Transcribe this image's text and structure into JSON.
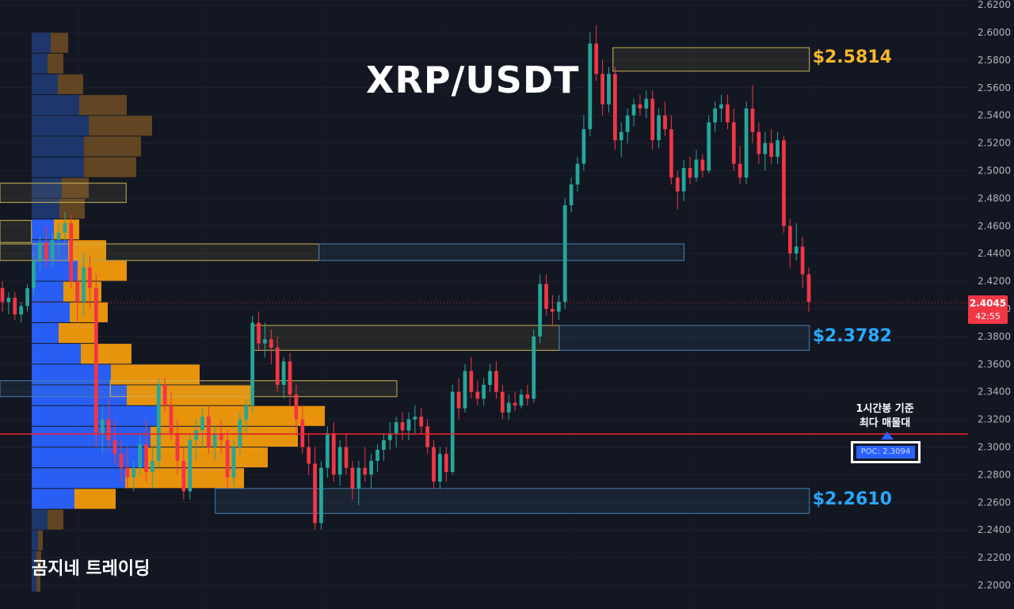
{
  "chart_title": "XRP/USDT",
  "watermark": "곰지네 트레이딩",
  "current_price": {
    "price": "2.4045",
    "countdown": "42:55"
  },
  "poc": {
    "note_line1": "1시간봉 기준",
    "note_line2": "최다 매물대",
    "label": "POC: 2.3094",
    "value": 2.3094
  },
  "colors": {
    "background": "#131722",
    "up": "#26a69a",
    "down": "#f23645",
    "supply_zone": "#c9b458",
    "demand_zone": "#4a7fb0",
    "label_gold": "#f5b72b",
    "label_blue": "#29a8ff",
    "poc_line": "#e5222e",
    "vp_up": "#2962ff",
    "vp_down": "#f29a0c"
  },
  "chart_data": {
    "type": "candlestick",
    "title": "XRP/USDT",
    "ylim": [
      2.19,
      2.62
    ],
    "y_ticks": [
      "2.2000",
      "2.2200",
      "2.2400",
      "2.2600",
      "2.2800",
      "2.3000",
      "2.3200",
      "2.3400",
      "2.3600",
      "2.3800",
      "2.4000",
      "2.4200",
      "2.4400",
      "2.4600",
      "2.4800",
      "2.5000",
      "2.5200",
      "2.5400",
      "2.5600",
      "2.5800",
      "2.6000",
      "2.6200"
    ],
    "grid": true,
    "candles": [
      [
        2.415,
        2.42,
        2.398,
        2.405
      ],
      [
        2.405,
        2.412,
        2.396,
        2.408
      ],
      [
        2.408,
        2.412,
        2.392,
        2.396
      ],
      [
        2.396,
        2.405,
        2.39,
        2.402
      ],
      [
        2.402,
        2.418,
        2.398,
        2.415
      ],
      [
        2.415,
        2.44,
        2.41,
        2.435
      ],
      [
        2.435,
        2.452,
        2.428,
        2.448
      ],
      [
        2.448,
        2.46,
        2.43,
        2.436
      ],
      [
        2.436,
        2.455,
        2.43,
        2.45
      ],
      [
        2.45,
        2.462,
        2.44,
        2.455
      ],
      [
        2.455,
        2.47,
        2.448,
        2.462
      ],
      [
        2.462,
        2.468,
        2.415,
        2.42
      ],
      [
        2.42,
        2.43,
        2.39,
        2.405
      ],
      [
        2.405,
        2.44,
        2.395,
        2.43
      ],
      [
        2.43,
        2.438,
        2.4,
        2.415
      ],
      [
        2.415,
        2.425,
        2.3,
        2.31
      ],
      [
        2.31,
        2.33,
        2.295,
        2.32
      ],
      [
        2.32,
        2.335,
        2.298,
        2.305
      ],
      [
        2.305,
        2.32,
        2.288,
        2.295
      ],
      [
        2.295,
        2.305,
        2.275,
        2.285
      ],
      [
        2.285,
        2.3,
        2.27,
        2.278
      ],
      [
        2.278,
        2.29,
        2.268,
        2.285
      ],
      [
        2.285,
        2.31,
        2.28,
        2.302
      ],
      [
        2.302,
        2.32,
        2.275,
        2.282
      ],
      [
        2.282,
        2.3,
        2.27,
        2.29
      ],
      [
        2.29,
        2.35,
        2.285,
        2.345
      ],
      [
        2.345,
        2.35,
        2.325,
        2.33
      ],
      [
        2.33,
        2.34,
        2.305,
        2.31
      ],
      [
        2.31,
        2.32,
        2.28,
        2.29
      ],
      [
        2.29,
        2.3,
        2.262,
        2.268
      ],
      [
        2.268,
        2.31,
        2.262,
        2.305
      ],
      [
        2.305,
        2.32,
        2.29,
        2.312
      ],
      [
        2.312,
        2.328,
        2.3,
        2.322
      ],
      [
        2.322,
        2.33,
        2.295,
        2.3
      ],
      [
        2.3,
        2.315,
        2.29,
        2.31
      ],
      [
        2.31,
        2.32,
        2.295,
        2.305
      ],
      [
        2.305,
        2.312,
        2.27,
        2.278
      ],
      [
        2.278,
        2.305,
        2.272,
        2.3
      ],
      [
        2.3,
        2.325,
        2.295,
        2.32
      ],
      [
        2.32,
        2.335,
        2.31,
        2.33
      ],
      [
        2.33,
        2.395,
        2.325,
        2.39
      ],
      [
        2.39,
        2.398,
        2.37,
        2.375
      ],
      [
        2.375,
        2.39,
        2.365,
        2.378
      ],
      [
        2.378,
        2.385,
        2.36,
        2.372
      ],
      [
        2.372,
        2.38,
        2.34,
        2.345
      ],
      [
        2.345,
        2.365,
        2.335,
        2.362
      ],
      [
        2.362,
        2.368,
        2.33,
        2.338
      ],
      [
        2.338,
        2.345,
        2.31,
        2.32
      ],
      [
        2.32,
        2.33,
        2.295,
        2.3
      ],
      [
        2.3,
        2.31,
        2.28,
        2.288
      ],
      [
        2.288,
        2.3,
        2.24,
        2.245
      ],
      [
        2.245,
        2.29,
        2.24,
        2.285
      ],
      [
        2.285,
        2.315,
        2.278,
        2.31
      ],
      [
        2.31,
        2.318,
        2.275,
        2.28
      ],
      [
        2.28,
        2.305,
        2.272,
        2.3
      ],
      [
        2.3,
        2.31,
        2.28,
        2.285
      ],
      [
        2.285,
        2.29,
        2.262,
        2.27
      ],
      [
        2.27,
        2.29,
        2.258,
        2.285
      ],
      [
        2.285,
        2.3,
        2.275,
        2.28
      ],
      [
        2.28,
        2.295,
        2.27,
        2.29
      ],
      [
        2.29,
        2.302,
        2.282,
        2.298
      ],
      [
        2.298,
        2.31,
        2.29,
        2.305
      ],
      [
        2.305,
        2.318,
        2.298,
        2.31
      ],
      [
        2.31,
        2.322,
        2.3,
        2.318
      ],
      [
        2.318,
        2.325,
        2.305,
        2.312
      ],
      [
        2.312,
        2.325,
        2.305,
        2.32
      ],
      [
        2.32,
        2.33,
        2.31,
        2.322
      ],
      [
        2.322,
        2.328,
        2.31,
        2.315
      ],
      [
        2.315,
        2.32,
        2.295,
        2.3
      ],
      [
        2.3,
        2.305,
        2.27,
        2.275
      ],
      [
        2.275,
        2.3,
        2.27,
        2.295
      ],
      [
        2.295,
        2.3,
        2.275,
        2.282
      ],
      [
        2.282,
        2.345,
        2.28,
        2.34
      ],
      [
        2.34,
        2.35,
        2.32,
        2.328
      ],
      [
        2.328,
        2.36,
        2.325,
        2.355
      ],
      [
        2.355,
        2.365,
        2.335,
        2.34
      ],
      [
        2.34,
        2.348,
        2.33,
        2.335
      ],
      [
        2.335,
        2.35,
        2.33,
        2.345
      ],
      [
        2.345,
        2.36,
        2.34,
        2.355
      ],
      [
        2.355,
        2.362,
        2.335,
        2.34
      ],
      [
        2.34,
        2.345,
        2.32,
        2.325
      ],
      [
        2.325,
        2.338,
        2.32,
        2.332
      ],
      [
        2.332,
        2.34,
        2.326,
        2.33
      ],
      [
        2.33,
        2.342,
        2.328,
        2.338
      ],
      [
        2.338,
        2.345,
        2.33,
        2.335
      ],
      [
        2.335,
        2.385,
        2.332,
        2.38
      ],
      [
        2.38,
        2.425,
        2.375,
        2.418
      ],
      [
        2.418,
        2.425,
        2.395,
        2.4
      ],
      [
        2.4,
        2.41,
        2.388,
        2.398
      ],
      [
        2.398,
        2.41,
        2.392,
        2.405
      ],
      [
        2.405,
        2.48,
        2.4,
        2.475
      ],
      [
        2.475,
        2.495,
        2.47,
        2.49
      ],
      [
        2.49,
        2.51,
        2.485,
        2.505
      ],
      [
        2.505,
        2.54,
        2.5,
        2.53
      ],
      [
        2.53,
        2.6,
        2.525,
        2.592
      ],
      [
        2.592,
        2.605,
        2.565,
        2.57
      ],
      [
        2.57,
        2.58,
        2.54,
        2.548
      ],
      [
        2.548,
        2.575,
        2.542,
        2.57
      ],
      [
        2.57,
        2.575,
        2.515,
        2.522
      ],
      [
        2.522,
        2.535,
        2.51,
        2.528
      ],
      [
        2.528,
        2.545,
        2.52,
        2.54
      ],
      [
        2.54,
        2.552,
        2.532,
        2.548
      ],
      [
        2.548,
        2.555,
        2.54,
        2.545
      ],
      [
        2.545,
        2.558,
        2.538,
        2.552
      ],
      [
        2.552,
        2.558,
        2.515,
        2.522
      ],
      [
        2.522,
        2.545,
        2.516,
        2.54
      ],
      [
        2.54,
        2.55,
        2.525,
        2.53
      ],
      [
        2.53,
        2.54,
        2.49,
        2.495
      ],
      [
        2.495,
        2.5,
        2.472,
        2.485
      ],
      [
        2.485,
        2.508,
        2.478,
        2.502
      ],
      [
        2.502,
        2.51,
        2.49,
        2.495
      ],
      [
        2.495,
        2.515,
        2.492,
        2.508
      ],
      [
        2.508,
        2.512,
        2.495,
        2.5
      ],
      [
        2.5,
        2.54,
        2.498,
        2.535
      ],
      [
        2.535,
        2.55,
        2.528,
        2.545
      ],
      [
        2.545,
        2.555,
        2.535,
        2.548
      ],
      [
        2.548,
        2.555,
        2.53,
        2.535
      ],
      [
        2.535,
        2.545,
        2.5,
        2.505
      ],
      [
        2.505,
        2.518,
        2.49,
        2.495
      ],
      [
        2.495,
        2.55,
        2.49,
        2.545
      ],
      [
        2.545,
        2.562,
        2.52,
        2.528
      ],
      [
        2.528,
        2.535,
        2.505,
        2.512
      ],
      [
        2.512,
        2.528,
        2.5,
        2.52
      ],
      [
        2.52,
        2.53,
        2.505,
        2.51
      ],
      [
        2.51,
        2.528,
        2.505,
        2.522
      ],
      [
        2.522,
        2.525,
        2.455,
        2.46
      ],
      [
        2.46,
        2.465,
        2.43,
        2.44
      ],
      [
        2.44,
        2.462,
        2.435,
        2.445
      ],
      [
        2.445,
        2.452,
        2.415,
        2.425
      ],
      [
        2.425,
        2.43,
        2.398,
        2.405
      ]
    ],
    "volume_profile": [
      {
        "price": 2.5925,
        "up": 24,
        "down": 22
      },
      {
        "price": 2.5775,
        "up": 20,
        "down": 20
      },
      {
        "price": 2.5625,
        "up": 33,
        "down": 32
      },
      {
        "price": 2.5475,
        "up": 60,
        "down": 60
      },
      {
        "price": 2.5325,
        "up": 72,
        "down": 80
      },
      {
        "price": 2.5175,
        "up": 66,
        "down": 72
      },
      {
        "price": 2.5025,
        "up": 66,
        "down": 66
      },
      {
        "price": 2.4875,
        "up": 38,
        "down": 34
      },
      {
        "price": 2.4725,
        "up": 35,
        "down": 32
      },
      {
        "price": 2.4575,
        "up": 28,
        "down": 32
      },
      {
        "price": 2.4425,
        "up": 46,
        "down": 48
      },
      {
        "price": 2.4275,
        "up": 58,
        "down": 62
      },
      {
        "price": 2.4125,
        "up": 40,
        "down": 48
      },
      {
        "price": 2.3975,
        "up": 48,
        "down": 48
      },
      {
        "price": 2.3825,
        "up": 34,
        "down": 46
      },
      {
        "price": 2.3675,
        "up": 62,
        "down": 64
      },
      {
        "price": 2.3525,
        "up": 100,
        "down": 112
      },
      {
        "price": 2.3375,
        "up": 120,
        "down": 158
      },
      {
        "price": 2.3225,
        "up": 160,
        "down": 210
      },
      {
        "price": 2.3075,
        "up": 150,
        "down": 186
      },
      {
        "price": 2.2925,
        "up": 146,
        "down": 152
      },
      {
        "price": 2.2775,
        "up": 118,
        "down": 150
      },
      {
        "price": 2.2625,
        "up": 54,
        "down": 52
      },
      {
        "price": 2.2475,
        "up": 20,
        "down": 20
      },
      {
        "price": 2.2325,
        "up": 8,
        "down": 6
      },
      {
        "price": 2.2175,
        "up": 6,
        "down": 6
      },
      {
        "price": 2.2025,
        "up": 6,
        "down": 5
      }
    ],
    "zones": [
      {
        "name": "supply-zone-top",
        "top": 2.589,
        "bottom": 2.572,
        "x0": 0.6045,
        "x1": 0.7982,
        "kind": "supply",
        "label": "$2.5814"
      },
      {
        "name": "zone-upper-left",
        "top": 2.491,
        "bottom": 2.477,
        "x0": 0.0,
        "x1": 0.1244,
        "kind": "supply",
        "label": ""
      },
      {
        "name": "zone-upper-left-2",
        "top": 2.464,
        "bottom": 2.448,
        "x0": 0.0,
        "x1": 0.031,
        "kind": "supply",
        "label": ""
      },
      {
        "name": "zone-mid-yellow",
        "top": 2.447,
        "bottom": 2.435,
        "x0": 0.0,
        "x1": 0.3145,
        "kind": "supply",
        "label": ""
      },
      {
        "name": "zone-mid-blue",
        "top": 2.447,
        "bottom": 2.435,
        "x0": 0.3145,
        "x1": 0.6746,
        "kind": "demand",
        "label": ""
      },
      {
        "name": "zone-382-yellow",
        "top": 2.388,
        "bottom": 2.37,
        "x0": 0.2481,
        "x1": 0.5515,
        "kind": "supply",
        "label": ""
      },
      {
        "name": "zone-382-blue",
        "top": 2.388,
        "bottom": 2.37,
        "x0": 0.5515,
        "x1": 0.7982,
        "kind": "demand",
        "label": "$2.3782"
      },
      {
        "name": "zone-345-blue",
        "top": 2.348,
        "bottom": 2.3365,
        "x0": 0.0,
        "x1": 0.1088,
        "kind": "demand",
        "label": ""
      },
      {
        "name": "zone-345-yellow",
        "top": 2.348,
        "bottom": 2.3365,
        "x0": 0.1088,
        "x1": 0.3914,
        "kind": "supply",
        "label": ""
      },
      {
        "name": "demand-zone-bottom",
        "top": 2.27,
        "bottom": 2.252,
        "x0": 0.2123,
        "x1": 0.7982,
        "kind": "demand",
        "label": "$2.2610"
      }
    ]
  }
}
